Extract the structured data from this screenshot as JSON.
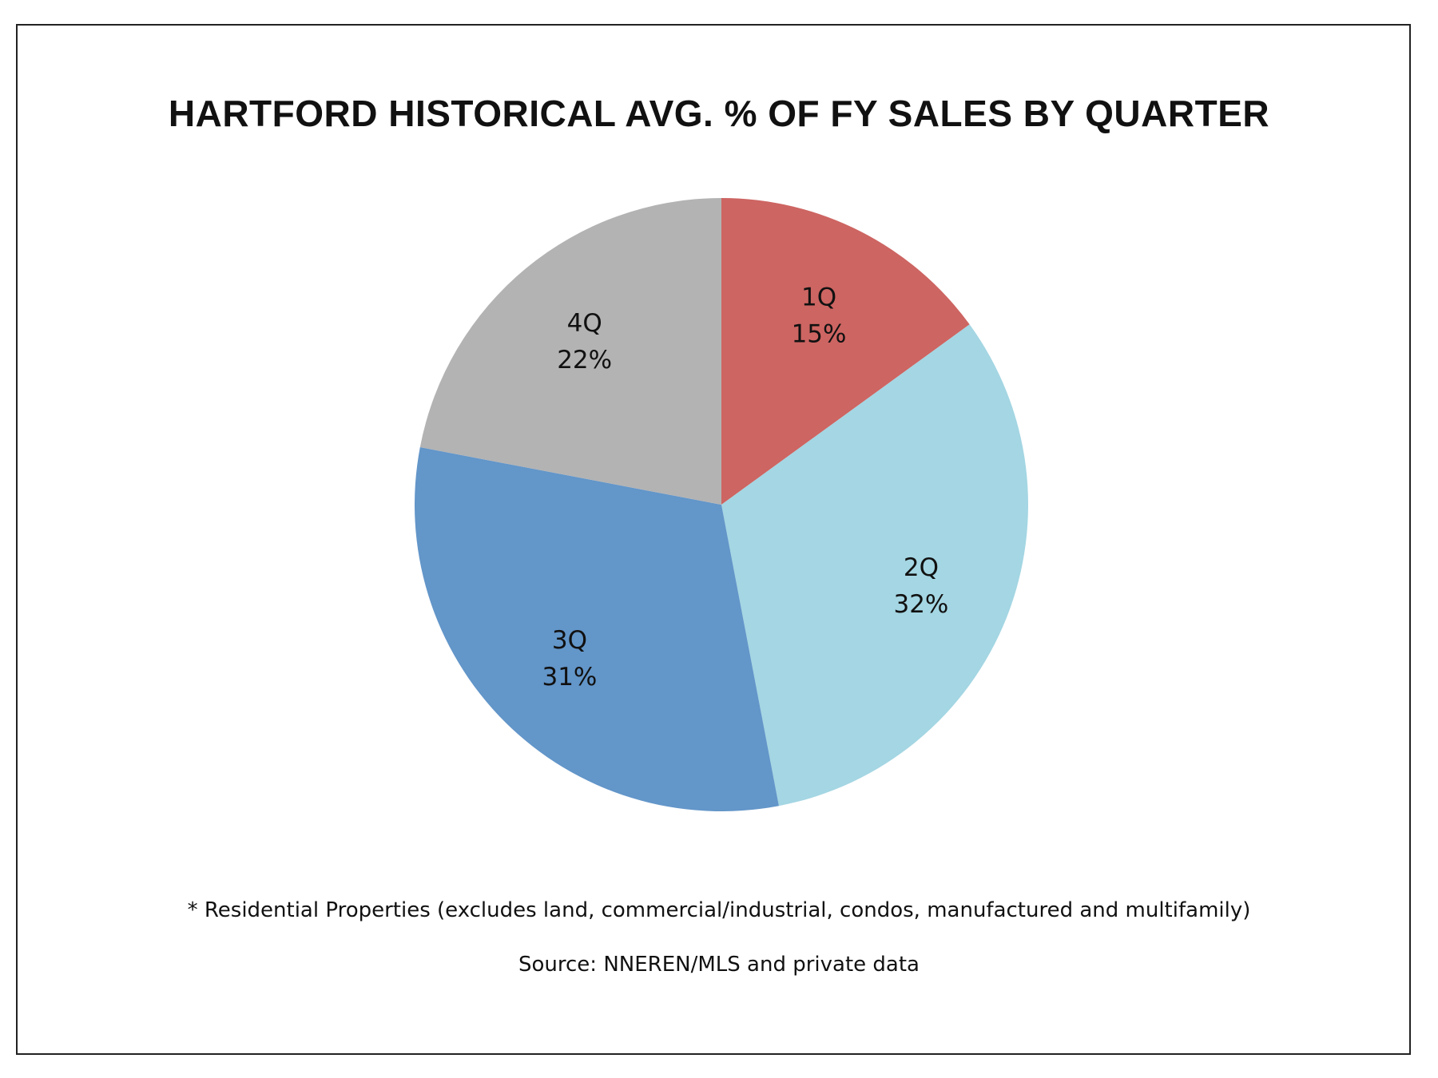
{
  "chart_data": {
    "type": "pie",
    "title": "HARTFORD HISTORICAL AVG. % OF FY SALES BY QUARTER",
    "slices": [
      {
        "label": "1Q",
        "value": 15,
        "value_label": "15%",
        "color": "#CD6562"
      },
      {
        "label": "2Q",
        "value": 32,
        "value_label": "32%",
        "color": "#A4D6E3"
      },
      {
        "label": "3Q",
        "value": 31,
        "value_label": "31%",
        "color": "#6396C9"
      },
      {
        "label": "4Q",
        "value": 22,
        "value_label": "22%",
        "color": "#B3B3B3"
      }
    ],
    "start": "top",
    "direction": "clockwise",
    "legend": "none"
  },
  "notes": {
    "footnote": "* Residential Properties (excludes land, commercial/industrial, condos, manufactured and multifamily)",
    "source": "Source: NNEREN/MLS and private data"
  }
}
